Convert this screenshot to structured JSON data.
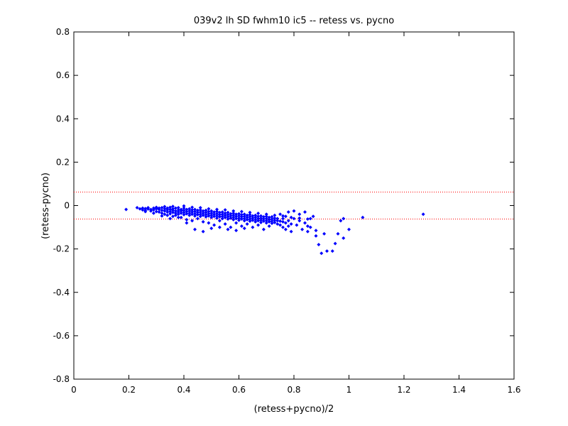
{
  "chart_data": {
    "type": "scatter",
    "title": "039v2 lh SD fwhm10 ic5 -- retess vs. pycno",
    "xlabel": "(retess+pycno)/2",
    "ylabel": "(retess-pycno)",
    "xlim": [
      0,
      1.6
    ],
    "ylim": [
      -0.8,
      0.8
    ],
    "xticks": [
      "0",
      "0.2",
      "0.4",
      "0.6",
      "0.8",
      "1",
      "1.2",
      "1.4",
      "1.6"
    ],
    "yticks": [
      "-0.8",
      "-0.6",
      "-0.4",
      "-0.2",
      "0",
      "0.2",
      "0.4",
      "0.6",
      "0.8"
    ],
    "grid": false,
    "marker_color": "#0000ff",
    "reference_lines": [
      {
        "y": 0.062,
        "style": "dotted",
        "color": "#ff0000"
      },
      {
        "y": -0.062,
        "style": "dotted",
        "color": "#ff0000"
      }
    ],
    "series": [
      {
        "points": [
          [
            0.19,
            -0.018
          ],
          [
            0.23,
            -0.01
          ],
          [
            0.24,
            -0.015
          ],
          [
            0.25,
            -0.012
          ],
          [
            0.25,
            -0.02
          ],
          [
            0.26,
            -0.014
          ],
          [
            0.26,
            -0.022
          ],
          [
            0.27,
            -0.016
          ],
          [
            0.27,
            -0.01
          ],
          [
            0.28,
            -0.018
          ],
          [
            0.28,
            -0.025
          ],
          [
            0.29,
            -0.012
          ],
          [
            0.29,
            -0.02
          ],
          [
            0.3,
            -0.015
          ],
          [
            0.3,
            -0.028
          ],
          [
            0.3,
            -0.008
          ],
          [
            0.31,
            -0.018
          ],
          [
            0.31,
            -0.03
          ],
          [
            0.31,
            -0.012
          ],
          [
            0.32,
            -0.022
          ],
          [
            0.32,
            -0.01
          ],
          [
            0.32,
            -0.035
          ],
          [
            0.33,
            -0.015
          ],
          [
            0.33,
            -0.025
          ],
          [
            0.33,
            -0.04
          ],
          [
            0.33,
            -0.005
          ],
          [
            0.34,
            -0.02
          ],
          [
            0.34,
            -0.03
          ],
          [
            0.34,
            -0.012
          ],
          [
            0.34,
            -0.045
          ],
          [
            0.35,
            -0.018
          ],
          [
            0.35,
            -0.028
          ],
          [
            0.35,
            -0.038
          ],
          [
            0.35,
            -0.008
          ],
          [
            0.36,
            -0.022
          ],
          [
            0.36,
            -0.032
          ],
          [
            0.36,
            -0.015
          ],
          [
            0.36,
            -0.05
          ],
          [
            0.37,
            -0.025
          ],
          [
            0.37,
            -0.035
          ],
          [
            0.37,
            -0.012
          ],
          [
            0.37,
            -0.045
          ],
          [
            0.38,
            -0.02
          ],
          [
            0.38,
            -0.03
          ],
          [
            0.38,
            -0.04
          ],
          [
            0.38,
            -0.01
          ],
          [
            0.39,
            -0.025
          ],
          [
            0.39,
            -0.035
          ],
          [
            0.39,
            -0.018
          ],
          [
            0.39,
            -0.055
          ],
          [
            0.4,
            -0.022
          ],
          [
            0.4,
            -0.032
          ],
          [
            0.4,
            -0.042
          ],
          [
            0.4,
            -0.012
          ],
          [
            0.41,
            -0.028
          ],
          [
            0.41,
            -0.038
          ],
          [
            0.41,
            -0.018
          ],
          [
            0.41,
            -0.065
          ],
          [
            0.42,
            -0.025
          ],
          [
            0.42,
            -0.035
          ],
          [
            0.42,
            -0.045
          ],
          [
            0.42,
            -0.015
          ],
          [
            0.43,
            -0.03
          ],
          [
            0.43,
            -0.04
          ],
          [
            0.43,
            -0.02
          ],
          [
            0.43,
            -0.07
          ],
          [
            0.44,
            -0.028
          ],
          [
            0.44,
            -0.038
          ],
          [
            0.44,
            -0.048
          ],
          [
            0.44,
            -0.018
          ],
          [
            0.45,
            -0.032
          ],
          [
            0.45,
            -0.042
          ],
          [
            0.45,
            -0.022
          ],
          [
            0.45,
            -0.06
          ],
          [
            0.46,
            -0.03
          ],
          [
            0.46,
            -0.04
          ],
          [
            0.46,
            -0.05
          ],
          [
            0.46,
            -0.02
          ],
          [
            0.47,
            -0.035
          ],
          [
            0.47,
            -0.045
          ],
          [
            0.47,
            -0.025
          ],
          [
            0.47,
            -0.075
          ],
          [
            0.48,
            -0.032
          ],
          [
            0.48,
            -0.042
          ],
          [
            0.48,
            -0.052
          ],
          [
            0.48,
            -0.022
          ],
          [
            0.49,
            -0.038
          ],
          [
            0.49,
            -0.048
          ],
          [
            0.49,
            -0.028
          ],
          [
            0.49,
            -0.08
          ],
          [
            0.5,
            -0.035
          ],
          [
            0.5,
            -0.045
          ],
          [
            0.5,
            -0.055
          ],
          [
            0.5,
            -0.025
          ],
          [
            0.51,
            -0.04
          ],
          [
            0.51,
            -0.05
          ],
          [
            0.51,
            -0.03
          ],
          [
            0.51,
            -0.09
          ],
          [
            0.52,
            -0.038
          ],
          [
            0.52,
            -0.048
          ],
          [
            0.52,
            -0.058
          ],
          [
            0.52,
            -0.028
          ],
          [
            0.53,
            -0.042
          ],
          [
            0.53,
            -0.052
          ],
          [
            0.53,
            -0.032
          ],
          [
            0.53,
            -0.07
          ],
          [
            0.54,
            -0.04
          ],
          [
            0.54,
            -0.05
          ],
          [
            0.54,
            -0.06
          ],
          [
            0.54,
            -0.03
          ],
          [
            0.55,
            -0.045
          ],
          [
            0.55,
            -0.055
          ],
          [
            0.55,
            -0.035
          ],
          [
            0.55,
            -0.085
          ],
          [
            0.56,
            -0.042
          ],
          [
            0.56,
            -0.052
          ],
          [
            0.56,
            -0.062
          ],
          [
            0.56,
            -0.032
          ],
          [
            0.57,
            -0.048
          ],
          [
            0.57,
            -0.058
          ],
          [
            0.57,
            -0.038
          ],
          [
            0.57,
            -0.1
          ],
          [
            0.58,
            -0.045
          ],
          [
            0.58,
            -0.055
          ],
          [
            0.58,
            -0.065
          ],
          [
            0.58,
            -0.035
          ],
          [
            0.59,
            -0.05
          ],
          [
            0.59,
            -0.06
          ],
          [
            0.59,
            -0.04
          ],
          [
            0.59,
            -0.08
          ],
          [
            0.6,
            -0.048
          ],
          [
            0.6,
            -0.058
          ],
          [
            0.6,
            -0.068
          ],
          [
            0.6,
            -0.038
          ],
          [
            0.61,
            -0.052
          ],
          [
            0.61,
            -0.062
          ],
          [
            0.61,
            -0.042
          ],
          [
            0.61,
            -0.095
          ],
          [
            0.62,
            -0.05
          ],
          [
            0.62,
            -0.06
          ],
          [
            0.62,
            -0.07
          ],
          [
            0.62,
            -0.04
          ],
          [
            0.63,
            -0.055
          ],
          [
            0.63,
            -0.065
          ],
          [
            0.63,
            -0.045
          ],
          [
            0.63,
            -0.085
          ],
          [
            0.64,
            -0.052
          ],
          [
            0.64,
            -0.062
          ],
          [
            0.64,
            -0.072
          ],
          [
            0.64,
            -0.042
          ],
          [
            0.65,
            -0.058
          ],
          [
            0.65,
            -0.068
          ],
          [
            0.65,
            -0.048
          ],
          [
            0.65,
            -0.1
          ],
          [
            0.66,
            -0.055
          ],
          [
            0.66,
            -0.065
          ],
          [
            0.66,
            -0.075
          ],
          [
            0.66,
            -0.045
          ],
          [
            0.67,
            -0.06
          ],
          [
            0.67,
            -0.07
          ],
          [
            0.67,
            -0.05
          ],
          [
            0.67,
            -0.09
          ],
          [
            0.68,
            -0.058
          ],
          [
            0.68,
            -0.068
          ],
          [
            0.68,
            -0.078
          ],
          [
            0.68,
            -0.048
          ],
          [
            0.69,
            -0.062
          ],
          [
            0.69,
            -0.072
          ],
          [
            0.69,
            -0.052
          ],
          [
            0.69,
            -0.11
          ],
          [
            0.7,
            -0.06
          ],
          [
            0.7,
            -0.07
          ],
          [
            0.7,
            -0.08
          ],
          [
            0.7,
            -0.05
          ],
          [
            0.71,
            -0.065
          ],
          [
            0.71,
            -0.075
          ],
          [
            0.71,
            -0.055
          ],
          [
            0.71,
            -0.095
          ],
          [
            0.72,
            -0.062
          ],
          [
            0.72,
            -0.072
          ],
          [
            0.72,
            -0.082
          ],
          [
            0.72,
            -0.052
          ],
          [
            0.73,
            -0.068
          ],
          [
            0.73,
            -0.078
          ],
          [
            0.73,
            -0.058
          ],
          [
            0.74,
            -0.07
          ],
          [
            0.74,
            -0.085
          ],
          [
            0.74,
            -0.06
          ],
          [
            0.75,
            -0.072
          ],
          [
            0.75,
            -0.09
          ],
          [
            0.75,
            -0.04
          ],
          [
            0.76,
            -0.075
          ],
          [
            0.76,
            -0.1
          ],
          [
            0.76,
            -0.06
          ],
          [
            0.77,
            -0.08
          ],
          [
            0.77,
            -0.11
          ],
          [
            0.77,
            -0.05
          ],
          [
            0.78,
            -0.07
          ],
          [
            0.78,
            -0.095
          ],
          [
            0.78,
            -0.03
          ],
          [
            0.79,
            -0.085
          ],
          [
            0.79,
            -0.12
          ],
          [
            0.8,
            -0.06
          ],
          [
            0.8,
            -0.025
          ],
          [
            0.81,
            -0.09
          ],
          [
            0.82,
            -0.07
          ],
          [
            0.82,
            -0.04
          ],
          [
            0.83,
            -0.11
          ],
          [
            0.84,
            -0.08
          ],
          [
            0.84,
            -0.03
          ],
          [
            0.85,
            -0.12
          ],
          [
            0.85,
            -0.095
          ],
          [
            0.86,
            -0.06
          ],
          [
            0.86,
            -0.1
          ],
          [
            0.87,
            -0.05
          ],
          [
            0.88,
            -0.14
          ],
          [
            0.88,
            -0.115
          ],
          [
            0.89,
            -0.18
          ],
          [
            0.9,
            -0.22
          ],
          [
            0.91,
            -0.13
          ],
          [
            0.92,
            -0.21
          ],
          [
            0.94,
            -0.21
          ],
          [
            0.95,
            -0.175
          ],
          [
            0.96,
            -0.13
          ],
          [
            0.97,
            -0.07
          ],
          [
            0.98,
            -0.15
          ],
          [
            0.98,
            -0.06
          ],
          [
            1.0,
            -0.11
          ],
          [
            1.05,
            -0.055
          ],
          [
            1.27,
            -0.04
          ],
          [
            0.35,
            -0.06
          ],
          [
            0.38,
            -0.055
          ],
          [
            0.41,
            -0.08
          ],
          [
            0.44,
            -0.11
          ],
          [
            0.47,
            -0.12
          ],
          [
            0.5,
            -0.105
          ],
          [
            0.53,
            -0.1
          ],
          [
            0.56,
            -0.11
          ],
          [
            0.59,
            -0.115
          ],
          [
            0.62,
            -0.105
          ],
          [
            0.26,
            -0.028
          ],
          [
            0.29,
            -0.035
          ],
          [
            0.32,
            -0.048
          ],
          [
            0.36,
            -0.004
          ],
          [
            0.4,
            -0.002
          ],
          [
            0.43,
            -0.008
          ],
          [
            0.46,
            -0.01
          ],
          [
            0.49,
            -0.015
          ],
          [
            0.52,
            -0.018
          ],
          [
            0.55,
            -0.02
          ],
          [
            0.58,
            -0.025
          ],
          [
            0.61,
            -0.028
          ],
          [
            0.64,
            -0.032
          ],
          [
            0.67,
            -0.036
          ],
          [
            0.7,
            -0.04
          ],
          [
            0.73,
            -0.045
          ],
          [
            0.76,
            -0.048
          ],
          [
            0.79,
            -0.055
          ],
          [
            0.82,
            -0.058
          ],
          [
            0.85,
            -0.062
          ]
        ]
      }
    ]
  }
}
